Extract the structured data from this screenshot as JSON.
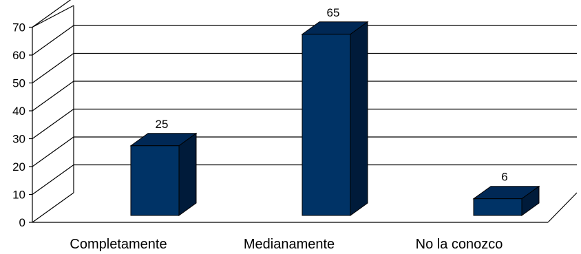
{
  "chart_data": {
    "type": "bar",
    "style": "3d",
    "categories": [
      "Completamente",
      "Medianamente",
      "No la conozco"
    ],
    "values": [
      25,
      65,
      6
    ],
    "ylim": [
      0,
      70
    ],
    "yticks": [
      "0",
      "10",
      "20",
      "30",
      "40",
      "50",
      "60",
      "70"
    ],
    "data_labels": [
      "25",
      "65",
      "6"
    ],
    "grid": true,
    "legend": "none",
    "colors": {
      "bar_front": "#003366",
      "bar_top": "#002855",
      "bar_side": "#001b3a",
      "grid": "#000000"
    }
  }
}
